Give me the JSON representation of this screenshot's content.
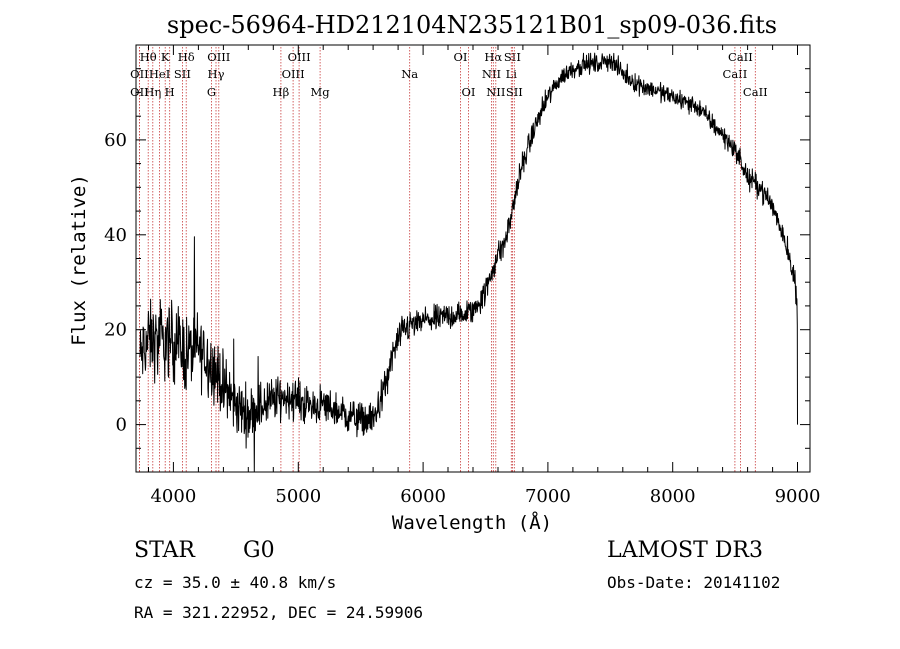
{
  "chart_data": {
    "type": "line",
    "title": "spec-56964-HD212104N235121B01_sp09-036.fits",
    "xlabel": "Wavelength (Å)",
    "ylabel": "Flux (relative)",
    "xlim": [
      3700,
      9100
    ],
    "ylim": [
      -10,
      80
    ],
    "x_ticks": [
      4000,
      5000,
      6000,
      7000,
      8000,
      9000
    ],
    "x_tick_labels": [
      "4000",
      "5000",
      "6000",
      "7000",
      "8000",
      "9000"
    ],
    "y_ticks": [
      0,
      20,
      40,
      60
    ],
    "y_tick_labels": [
      "0",
      "20",
      "40",
      "60"
    ],
    "series": [
      {
        "name": "spectrum",
        "x": [
          3730,
          3800,
          3900,
          4000,
          4100,
          4200,
          4300,
          4400,
          4500,
          4600,
          4700,
          4800,
          4900,
          5000,
          5100,
          5200,
          5300,
          5400,
          5500,
          5600,
          5700,
          5750,
          5800,
          5850,
          5900,
          5950,
          6000,
          6100,
          6200,
          6300,
          6400,
          6500,
          6550,
          6600,
          6650,
          6700,
          6750,
          6800,
          6900,
          7000,
          7100,
          7200,
          7300,
          7400,
          7500,
          7600,
          7700,
          7800,
          7900,
          8000,
          8100,
          8200,
          8300,
          8400,
          8500,
          8550,
          8600,
          8650,
          8700,
          8800,
          8900,
          8950,
          8980,
          9000
        ],
        "y": [
          14,
          18,
          17,
          18,
          15,
          16,
          13,
          8,
          4,
          2,
          4,
          5,
          6,
          5,
          4,
          4,
          3,
          2,
          1,
          1,
          8,
          14,
          18,
          20,
          21,
          21,
          22,
          22,
          23,
          23,
          24,
          28,
          32,
          36,
          38,
          43,
          50,
          55,
          63,
          69,
          73,
          75,
          76,
          76,
          77,
          74,
          72,
          71,
          70,
          69,
          68,
          67,
          64,
          61,
          58,
          55,
          52,
          51,
          50,
          46,
          39,
          34,
          30,
          22
        ]
      }
    ],
    "noise": [
      3.5,
      3.8,
      4.0,
      4.0,
      4.0,
      3.8,
      3.6,
      3.2,
      3.0,
      2.8,
      2.6,
      2.4,
      2.2,
      2.1,
      2.0,
      1.9,
      1.8,
      1.8,
      1.8,
      1.8,
      1.8,
      1.8,
      1.6,
      1.6,
      1.5,
      1.5,
      1.5,
      1.4,
      1.4,
      1.4,
      1.4,
      1.4,
      1.4,
      1.4,
      1.3,
      1.3,
      1.3,
      1.3,
      1.2,
      1.1,
      1.0,
      1.0,
      1.0,
      1.0,
      1.0,
      1.0,
      1.0,
      1.0,
      1.0,
      1.0,
      1.0,
      1.0,
      1.0,
      1.0,
      1.1,
      1.1,
      1.1,
      1.1,
      1.1,
      1.2,
      1.3,
      1.4,
      1.5,
      1.5
    ],
    "lines": [
      {
        "wave": 3727,
        "label": "OII",
        "row": 1
      },
      {
        "wave": 3727,
        "label": "OII",
        "row": 2
      },
      {
        "wave": 3798,
        "label": "Hθ",
        "row": 0
      },
      {
        "wave": 3835,
        "label": "Hη",
        "row": 2
      },
      {
        "wave": 3889,
        "label": "HeI",
        "row": 1
      },
      {
        "wave": 3934,
        "label": "K",
        "row": 0
      },
      {
        "wave": 3970,
        "label": "H",
        "row": 2
      },
      {
        "wave": 4072,
        "label": "SII",
        "row": 1
      },
      {
        "wave": 4102,
        "label": "Hδ",
        "row": 0
      },
      {
        "wave": 4305,
        "label": "G",
        "row": 2
      },
      {
        "wave": 4341,
        "label": "Hγ",
        "row": 1
      },
      {
        "wave": 4363,
        "label": "OIII",
        "row": 0
      },
      {
        "wave": 4861,
        "label": "Hβ",
        "row": 2
      },
      {
        "wave": 4959,
        "label": "OIII",
        "row": 1
      },
      {
        "wave": 5007,
        "label": "OIII",
        "row": 0
      },
      {
        "wave": 5175,
        "label": "Mg",
        "row": 2
      },
      {
        "wave": 5893,
        "label": "Na",
        "row": 1
      },
      {
        "wave": 6300,
        "label": "OI",
        "row": 0
      },
      {
        "wave": 6364,
        "label": "OI",
        "row": 2
      },
      {
        "wave": 6548,
        "label": "NII",
        "row": 1
      },
      {
        "wave": 6563,
        "label": "Hα",
        "row": 0
      },
      {
        "wave": 6583,
        "label": "NII",
        "row": 2
      },
      {
        "wave": 6707,
        "label": "Li",
        "row": 1
      },
      {
        "wave": 6716,
        "label": "SII",
        "row": 0
      },
      {
        "wave": 6731,
        "label": "SII",
        "row": 2
      },
      {
        "wave": 8498,
        "label": "CaII",
        "row": 1
      },
      {
        "wave": 8542,
        "label": "CaII",
        "row": 0
      },
      {
        "wave": 8662,
        "label": "CaII",
        "row": 2
      }
    ]
  },
  "info": {
    "object_class": "STAR",
    "subclass": "G0",
    "survey": "LAMOST DR3",
    "redshift": "cz = 35.0 ± 40.8 km/s",
    "obs_date": "Obs-Date: 20141102",
    "coords": "RA = 321.22952, DEC =  24.59906"
  },
  "colors": {
    "line_marker": "#c83c3c",
    "spectrum": "#000000",
    "axes": "#000000"
  }
}
